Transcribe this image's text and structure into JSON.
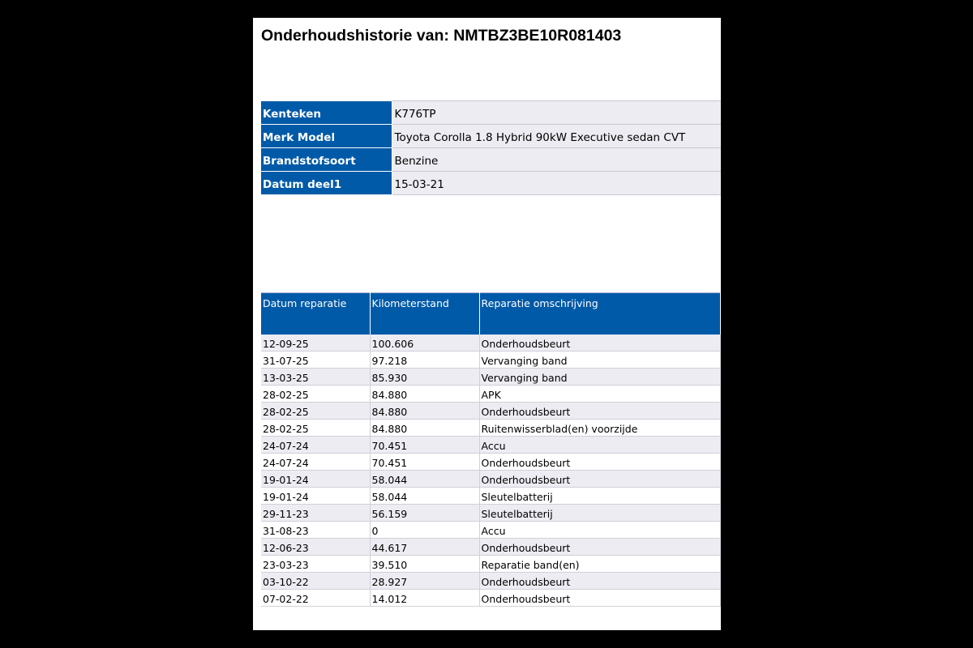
{
  "title": "Onderhoudshistorie van: NMTBZ3BE10R081403",
  "vehicle_info": [
    {
      "label": "Kenteken",
      "value": "K776TP"
    },
    {
      "label": "Merk Model",
      "value": "Toyota Corolla 1.8 Hybrid 90kW Executive sedan CVT"
    },
    {
      "label": "Brandstofsoort",
      "value": "Benzine"
    },
    {
      "label": "Datum deel1",
      "value": "15-03-21"
    }
  ],
  "history": {
    "columns": [
      "Datum reparatie",
      "Kilometerstand",
      "Reparatie omschrijving"
    ],
    "rows": [
      [
        "12-09-25",
        "100.606",
        "Onderhoudsbeurt"
      ],
      [
        "31-07-25",
        "97.218",
        "Vervanging band"
      ],
      [
        "13-03-25",
        "85.930",
        "Vervanging band"
      ],
      [
        "28-02-25",
        "84.880",
        "APK"
      ],
      [
        "28-02-25",
        "84.880",
        "Onderhoudsbeurt"
      ],
      [
        "28-02-25",
        "84.880",
        "Ruitenwisserblad(en) voorzijde"
      ],
      [
        "24-07-24",
        "70.451",
        "Accu"
      ],
      [
        "24-07-24",
        "70.451",
        "Onderhoudsbeurt"
      ],
      [
        "19-01-24",
        "58.044",
        "Onderhoudsbeurt"
      ],
      [
        "19-01-24",
        "58.044",
        "Sleutelbatterij"
      ],
      [
        "29-11-23",
        "56.159",
        "Sleutelbatterij"
      ],
      [
        "31-08-23",
        "0",
        "Accu"
      ],
      [
        "12-06-23",
        "44.617",
        "Onderhoudsbeurt"
      ],
      [
        "23-03-23",
        "39.510",
        "Reparatie band(en)"
      ],
      [
        "03-10-22",
        "28.927",
        "Onderhoudsbeurt"
      ],
      [
        "07-02-22",
        "14.012",
        "Onderhoudsbeurt"
      ]
    ]
  },
  "colors": {
    "header_blue": "#005aa8",
    "row_alt": "#ececf2"
  }
}
